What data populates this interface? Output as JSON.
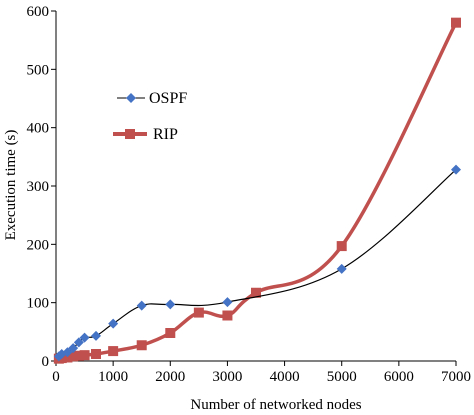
{
  "chart_data": {
    "type": "line",
    "xlabel": "Number of networked nodes",
    "ylabel": "Execution time (s)",
    "xlim": [
      0,
      7000
    ],
    "ylim": [
      0,
      600
    ],
    "xticks": [
      0,
      1000,
      2000,
      3000,
      4000,
      5000,
      6000,
      7000
    ],
    "yticks": [
      0,
      100,
      200,
      300,
      400,
      500,
      600
    ],
    "grid": false,
    "legend_position": "center-left",
    "series": [
      {
        "name": "OSPF",
        "color": "#4472C4",
        "marker": "diamond",
        "line_color": "#000000",
        "x": [
          50,
          100,
          200,
          300,
          400,
          500,
          700,
          1000,
          1500,
          2000,
          3000,
          5000,
          7000
        ],
        "y": [
          8,
          12,
          15,
          22,
          32,
          40,
          43,
          64,
          95,
          97,
          101,
          158,
          328
        ]
      },
      {
        "name": "RIP",
        "color": "#C0504D",
        "marker": "square",
        "line_color": "#C0504D",
        "x": [
          50,
          100,
          200,
          300,
          400,
          500,
          700,
          1000,
          1500,
          2000,
          2500,
          3000,
          3500,
          5000,
          7000
        ],
        "y": [
          4,
          5,
          6,
          8,
          9,
          10,
          12,
          17,
          27,
          48,
          83,
          78,
          117,
          197,
          580
        ]
      }
    ]
  }
}
